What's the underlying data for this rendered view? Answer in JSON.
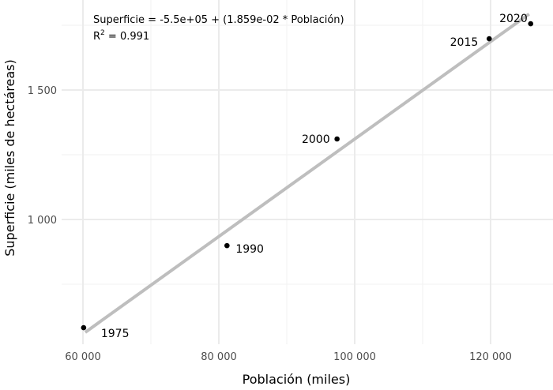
{
  "chart_data": {
    "type": "scatter",
    "title": "",
    "xlabel": "Población (miles)",
    "ylabel": "Superficie (miles de hectáreas)",
    "xlim": [
      57300,
      128700
    ],
    "ylim": [
      518,
      1823
    ],
    "x_ticks": [
      60000,
      80000,
      100000,
      120000
    ],
    "x_tick_labels": [
      "60 000",
      "80 000",
      "100 000",
      "120 000"
    ],
    "x_minor_ticks": [
      70000,
      90000,
      110000
    ],
    "y_ticks": [
      1000,
      1500
    ],
    "y_tick_labels": [
      "1 000",
      "1 500"
    ],
    "y_minor_ticks": [
      750,
      1250,
      1750
    ],
    "grid": true,
    "legend": "none",
    "points": [
      {
        "label": "1975",
        "x": 60100,
        "y": 582
      },
      {
        "label": "1990",
        "x": 81200,
        "y": 899
      },
      {
        "label": "2000",
        "x": 97400,
        "y": 1311
      },
      {
        "label": "2015",
        "x": 119800,
        "y": 1698
      },
      {
        "label": "2020",
        "x": 125900,
        "y": 1756
      }
    ],
    "fit_line": {
      "type": "linear",
      "intercept": -550,
      "slope": 0.01859,
      "x_range": [
        60100,
        125900
      ],
      "color": "#bebebe"
    },
    "annotations": {
      "equation": "Superficie = -5.5e+05   + (1.859e-02 * Población)",
      "r2_prefix": "R",
      "r2_sup": "2",
      "r2_value": " = 0.991"
    }
  },
  "colors": {
    "point": "#000000",
    "fit_line": "#bebebe",
    "grid_major": "#ebebeb",
    "grid_minor": "#f2f2f2"
  }
}
